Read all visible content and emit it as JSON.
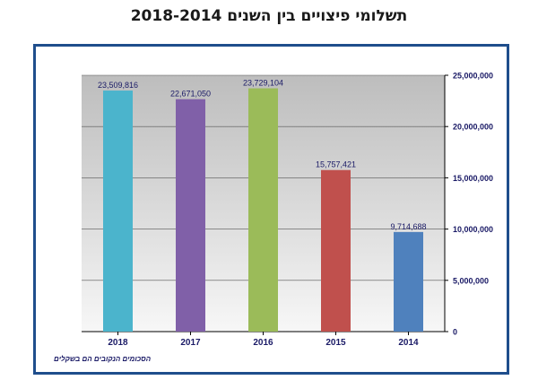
{
  "title": "תשלומי פיצויים בין השנים 2018-2014",
  "footnote": "הסכומים הנקובים הם בשקלים",
  "chart_data": {
    "type": "bar",
    "categories": [
      "2018",
      "2017",
      "2016",
      "2015",
      "2014"
    ],
    "values": [
      23509816,
      22671050,
      23729104,
      15757421,
      9714688
    ],
    "value_labels": [
      "23,509,816",
      "22,671,050",
      "23,729,104",
      "15,757,421",
      "9,714,688"
    ],
    "bar_colors": [
      "#4bb4cc",
      "#8060a8",
      "#9bbb59",
      "#c0504d",
      "#4f81bd"
    ],
    "y_ticks": [
      0,
      5000000,
      10000000,
      15000000,
      20000000,
      25000000
    ],
    "y_tick_labels": [
      "0",
      "5,000,000",
      "10,000,000",
      "15,000,000",
      "20,000,000",
      "25,000,000"
    ],
    "ylim": [
      0,
      25000000
    ],
    "y_axis_side": "right",
    "grid": true,
    "xlabel": "",
    "ylabel": ""
  }
}
